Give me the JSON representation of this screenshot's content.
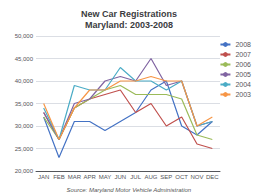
{
  "chart_data": {
    "type": "line",
    "title": "New Car Registrations\nMaryland: 2003-2008",
    "annotations": [
      "Source: Maryland Motor Vehicle Administration"
    ],
    "categories": [
      "JAN",
      "FEB",
      "MAR",
      "APR",
      "MAY",
      "JUN",
      "JUL",
      "AUG",
      "SEP",
      "OCT",
      "NOV",
      "DEC"
    ],
    "series": [
      {
        "name": "2008",
        "color": "#4472C4",
        "values": [
          32000,
          23000,
          31000,
          31000,
          29000,
          31000,
          33000,
          38000,
          40000,
          30000,
          28000,
          31000
        ]
      },
      {
        "name": "2007",
        "color": "#C0504D",
        "values": [
          33000,
          27000,
          34000,
          36000,
          37000,
          38000,
          33000,
          35000,
          30000,
          32000,
          26000,
          25000
        ]
      },
      {
        "name": "2006",
        "color": "#9BBB59",
        "values": [
          32000,
          27000,
          34000,
          36000,
          38000,
          39000,
          37000,
          37000,
          37000,
          36000,
          28000,
          27000
        ]
      },
      {
        "name": "2005",
        "color": "#8064A2",
        "values": [
          33000,
          27000,
          35000,
          36000,
          40000,
          41000,
          40000,
          45000,
          39000,
          40000,
          30000,
          31000
        ]
      },
      {
        "name": "2004",
        "color": "#4BACC6",
        "values": [
          34000,
          27000,
          39000,
          38000,
          38000,
          43000,
          40000,
          40000,
          38000,
          40000,
          30000,
          31000
        ]
      },
      {
        "name": "2003",
        "color": "#F79646",
        "values": [
          35000,
          27000,
          34000,
          38000,
          38000,
          40000,
          40000,
          41000,
          40000,
          40000,
          30000,
          32000
        ]
      }
    ],
    "ylim": [
      20000,
      50000
    ],
    "yticks": [
      {
        "value": 20000,
        "label": "20,000"
      },
      {
        "value": 25000,
        "label": "25,000"
      },
      {
        "value": 30000,
        "label": "30,000"
      },
      {
        "value": 35000,
        "label": "35,000"
      },
      {
        "value": 40000,
        "label": "40,000"
      },
      {
        "value": 45000,
        "label": "45,000"
      },
      {
        "value": 50000,
        "label": "50,000"
      }
    ],
    "grid": true,
    "legend": "right"
  }
}
